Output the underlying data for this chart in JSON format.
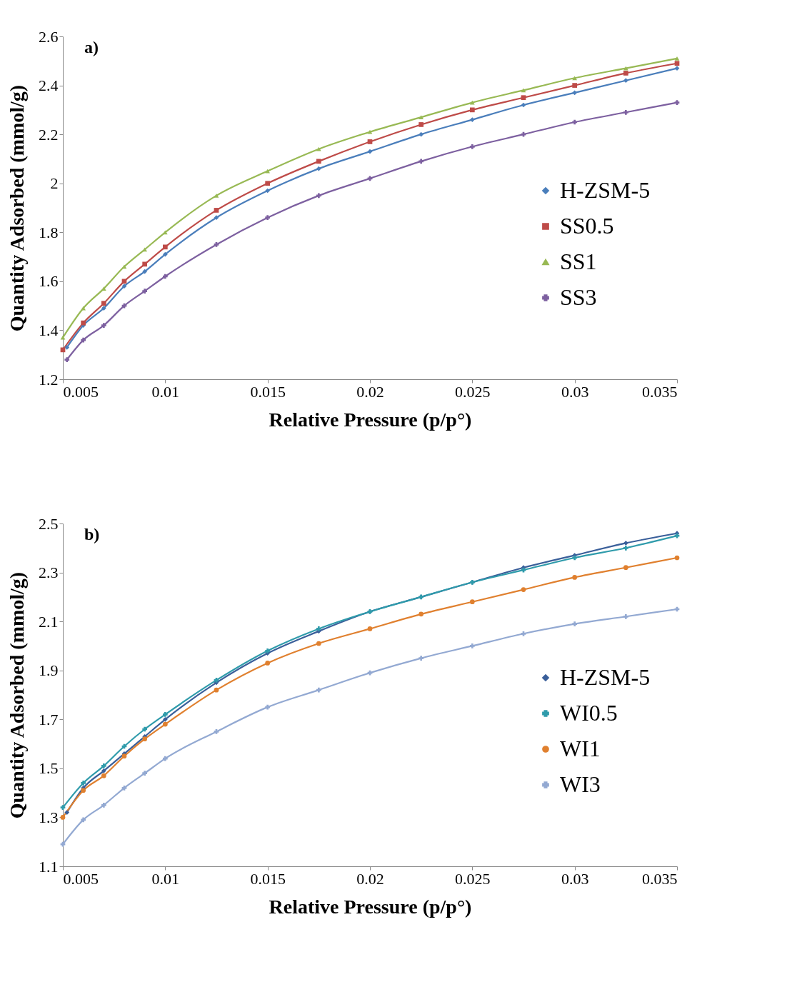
{
  "chart_data": [
    {
      "type": "line",
      "annotations": [
        "a)"
      ],
      "xlabel": "Relative Pressure (p/p°)",
      "ylabel": "Quantity Adsorbed (mmol/g)",
      "xlim": [
        0.005,
        0.035
      ],
      "xticks": [
        0.005,
        0.01,
        0.015,
        0.02,
        0.025,
        0.03,
        0.035
      ],
      "ylim": [
        1.2,
        2.6
      ],
      "yticks": [
        1.2,
        1.4,
        1.6,
        1.8,
        2,
        2.2,
        2.4,
        2.6
      ],
      "grid": false,
      "legend": "right",
      "series": [
        {
          "name": "H-ZSM-5",
          "color": "#4a7ebb",
          "marker": "diamond",
          "x": [
            0.0052,
            0.006,
            0.007,
            0.008,
            0.009,
            0.01,
            0.0125,
            0.015,
            0.0175,
            0.02,
            0.0225,
            0.025,
            0.0275,
            0.03,
            0.0325,
            0.035
          ],
          "values": [
            1.33,
            1.42,
            1.49,
            1.58,
            1.64,
            1.71,
            1.86,
            1.97,
            2.06,
            2.13,
            2.2,
            2.26,
            2.32,
            2.37,
            2.42,
            2.47
          ]
        },
        {
          "name": "SS0.5",
          "color": "#be4b48",
          "marker": "square",
          "x": [
            0.005,
            0.006,
            0.007,
            0.008,
            0.009,
            0.01,
            0.0125,
            0.015,
            0.0175,
            0.02,
            0.0225,
            0.025,
            0.0275,
            0.03,
            0.0325,
            0.035
          ],
          "values": [
            1.32,
            1.43,
            1.51,
            1.6,
            1.67,
            1.74,
            1.89,
            2.0,
            2.09,
            2.17,
            2.24,
            2.3,
            2.35,
            2.4,
            2.45,
            2.49
          ]
        },
        {
          "name": "SS1",
          "color": "#98b954",
          "marker": "triangle",
          "x": [
            0.005,
            0.006,
            0.007,
            0.008,
            0.009,
            0.01,
            0.0125,
            0.015,
            0.0175,
            0.02,
            0.0225,
            0.025,
            0.0275,
            0.03,
            0.0325,
            0.035
          ],
          "values": [
            1.37,
            1.49,
            1.57,
            1.66,
            1.73,
            1.8,
            1.95,
            2.05,
            2.14,
            2.21,
            2.27,
            2.33,
            2.38,
            2.43,
            2.47,
            2.51
          ]
        },
        {
          "name": "SS3",
          "color": "#7d60a0",
          "marker": "cross",
          "x": [
            0.0052,
            0.006,
            0.007,
            0.008,
            0.009,
            0.01,
            0.0125,
            0.015,
            0.0175,
            0.02,
            0.0225,
            0.025,
            0.0275,
            0.03,
            0.0325,
            0.035
          ],
          "values": [
            1.28,
            1.36,
            1.42,
            1.5,
            1.56,
            1.62,
            1.75,
            1.86,
            1.95,
            2.02,
            2.09,
            2.15,
            2.2,
            2.25,
            2.29,
            2.33
          ]
        }
      ]
    },
    {
      "type": "line",
      "annotations": [
        "b)"
      ],
      "xlabel": "Relative Pressure (p/p°)",
      "ylabel": "Quantity Adsorbed (mmol/g)",
      "xlim": [
        0.005,
        0.035
      ],
      "xticks": [
        0.005,
        0.01,
        0.015,
        0.02,
        0.025,
        0.03,
        0.035
      ],
      "ylim": [
        1.1,
        2.5
      ],
      "yticks": [
        1.1,
        1.3,
        1.5,
        1.7,
        1.9,
        2.1,
        2.3,
        2.5
      ],
      "grid": false,
      "legend": "right",
      "series": [
        {
          "name": "H-ZSM-5",
          "color": "#3a5f9a",
          "marker": "diamond",
          "x": [
            0.0052,
            0.006,
            0.007,
            0.008,
            0.009,
            0.01,
            0.0125,
            0.015,
            0.0175,
            0.02,
            0.0225,
            0.025,
            0.0275,
            0.03,
            0.0325,
            0.035
          ],
          "values": [
            1.32,
            1.42,
            1.49,
            1.56,
            1.63,
            1.7,
            1.85,
            1.97,
            2.06,
            2.14,
            2.2,
            2.26,
            2.32,
            2.37,
            2.42,
            2.46
          ]
        },
        {
          "name": "WI0.5",
          "color": "#2f9bab",
          "marker": "cross",
          "x": [
            0.005,
            0.006,
            0.007,
            0.008,
            0.009,
            0.01,
            0.0125,
            0.015,
            0.0175,
            0.02,
            0.0225,
            0.025,
            0.0275,
            0.03,
            0.0325,
            0.035
          ],
          "values": [
            1.34,
            1.44,
            1.51,
            1.59,
            1.66,
            1.72,
            1.86,
            1.98,
            2.07,
            2.14,
            2.2,
            2.26,
            2.31,
            2.36,
            2.4,
            2.45
          ]
        },
        {
          "name": "WI1",
          "color": "#e0802f",
          "marker": "circle",
          "x": [
            0.005,
            0.006,
            0.007,
            0.008,
            0.009,
            0.01,
            0.0125,
            0.015,
            0.0175,
            0.02,
            0.0225,
            0.025,
            0.0275,
            0.03,
            0.0325,
            0.035
          ],
          "values": [
            1.3,
            1.41,
            1.47,
            1.55,
            1.62,
            1.68,
            1.82,
            1.93,
            2.01,
            2.07,
            2.13,
            2.18,
            2.23,
            2.28,
            2.32,
            2.36
          ]
        },
        {
          "name": "WI3",
          "color": "#93a9d2",
          "marker": "cross",
          "x": [
            0.005,
            0.006,
            0.007,
            0.008,
            0.009,
            0.01,
            0.0125,
            0.015,
            0.0175,
            0.02,
            0.0225,
            0.025,
            0.0275,
            0.03,
            0.0325,
            0.035
          ],
          "values": [
            1.19,
            1.29,
            1.35,
            1.42,
            1.48,
            1.54,
            1.65,
            1.75,
            1.82,
            1.89,
            1.95,
            2.0,
            2.05,
            2.09,
            2.12,
            2.15
          ]
        }
      ]
    }
  ]
}
